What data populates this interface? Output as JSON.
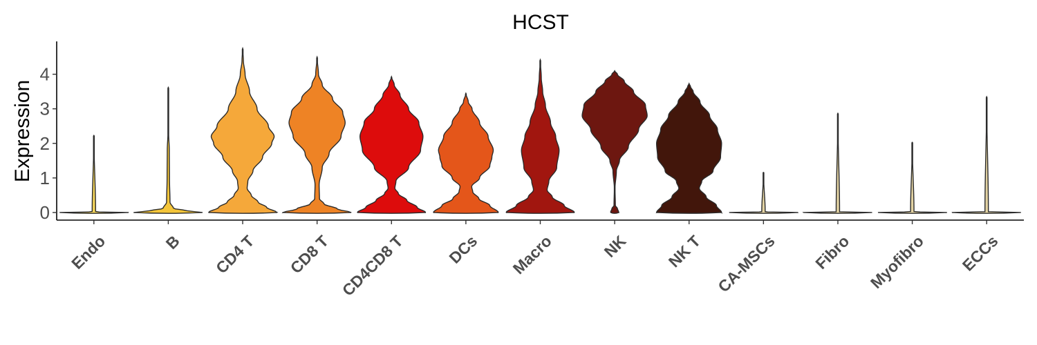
{
  "chart_data": {
    "type": "violin",
    "title": "HCST",
    "xlabel": "",
    "ylabel": "Expression",
    "ylim": [
      -0.22,
      4.95
    ],
    "yticks": [
      0,
      1,
      2,
      3,
      4
    ],
    "grid": false,
    "legend": "none",
    "categories": [
      "Endo",
      "B",
      "CD4 T",
      "CD8 T",
      "CD4CD8 T",
      "DCs",
      "Macro",
      "NK",
      "NK T",
      "CA-MSCs",
      "Fibro",
      "Myofibro",
      "ECCs"
    ],
    "colors": [
      "#f2d35a",
      "#f4c53a",
      "#f5a83a",
      "#ee8325",
      "#dd0c0c",
      "#e4561a",
      "#a1160f",
      "#6d1710",
      "#42160b",
      "#e3d3a3",
      "#e3d3a3",
      "#e3d3a3",
      "#e3d3a3"
    ],
    "series": [
      {
        "name": "Endo",
        "max": 2.23,
        "profile": [
          [
            0,
            1.0
          ],
          [
            0.02,
            0.05
          ],
          [
            2.23,
            0
          ]
        ]
      },
      {
        "name": "B",
        "max": 3.62,
        "profile": [
          [
            0,
            1.0
          ],
          [
            0.05,
            0.55
          ],
          [
            0.12,
            0.15
          ],
          [
            0.3,
            0.05
          ],
          [
            1.0,
            0.035
          ],
          [
            1.8,
            0.03
          ],
          [
            2.3,
            0.01
          ],
          [
            3.62,
            0
          ]
        ]
      },
      {
        "name": "CD4 T",
        "max": 4.75,
        "profile": [
          [
            0,
            1.0
          ],
          [
            0.15,
            0.7
          ],
          [
            0.3,
            0.45
          ],
          [
            0.5,
            0.25
          ],
          [
            0.7,
            0.13
          ],
          [
            0.9,
            0.15
          ],
          [
            1.2,
            0.3
          ],
          [
            1.6,
            0.58
          ],
          [
            2.0,
            0.85
          ],
          [
            2.2,
            0.92
          ],
          [
            2.5,
            0.75
          ],
          [
            3.0,
            0.42
          ],
          [
            3.5,
            0.2
          ],
          [
            4.0,
            0.07
          ],
          [
            4.4,
            0.02
          ],
          [
            4.75,
            0
          ]
        ]
      },
      {
        "name": "CD8 T",
        "max": 4.5,
        "profile": [
          [
            0,
            1.0
          ],
          [
            0.1,
            0.6
          ],
          [
            0.25,
            0.2
          ],
          [
            0.4,
            0.07
          ],
          [
            0.8,
            0.06
          ],
          [
            1.3,
            0.15
          ],
          [
            1.7,
            0.35
          ],
          [
            2.2,
            0.7
          ],
          [
            2.6,
            0.82
          ],
          [
            2.9,
            0.75
          ],
          [
            3.3,
            0.45
          ],
          [
            3.7,
            0.15
          ],
          [
            4.0,
            0.04
          ],
          [
            4.5,
            0
          ]
        ]
      },
      {
        "name": "CD4CD8 T",
        "max": 3.93,
        "profile": [
          [
            0,
            1.0
          ],
          [
            0.15,
            0.75
          ],
          [
            0.35,
            0.45
          ],
          [
            0.55,
            0.2
          ],
          [
            0.7,
            0.1
          ],
          [
            0.9,
            0.13
          ],
          [
            1.3,
            0.5
          ],
          [
            1.8,
            0.85
          ],
          [
            2.2,
            0.92
          ],
          [
            2.6,
            0.8
          ],
          [
            3.0,
            0.5
          ],
          [
            3.4,
            0.25
          ],
          [
            3.7,
            0.08
          ],
          [
            3.93,
            0
          ]
        ]
      },
      {
        "name": "DCs",
        "max": 3.45,
        "profile": [
          [
            0,
            0.95
          ],
          [
            0.2,
            0.7
          ],
          [
            0.4,
            0.38
          ],
          [
            0.6,
            0.2
          ],
          [
            0.75,
            0.17
          ],
          [
            1.0,
            0.4
          ],
          [
            1.35,
            0.7
          ],
          [
            1.6,
            0.76
          ],
          [
            1.8,
            0.8
          ],
          [
            2.2,
            0.65
          ],
          [
            2.6,
            0.4
          ],
          [
            3.0,
            0.18
          ],
          [
            3.2,
            0.07
          ],
          [
            3.45,
            0
          ]
        ]
      },
      {
        "name": "Macro",
        "max": 4.42,
        "profile": [
          [
            0,
            1.0
          ],
          [
            0.2,
            0.7
          ],
          [
            0.45,
            0.35
          ],
          [
            0.65,
            0.2
          ],
          [
            0.9,
            0.25
          ],
          [
            1.3,
            0.48
          ],
          [
            1.8,
            0.55
          ],
          [
            2.2,
            0.45
          ],
          [
            2.6,
            0.3
          ],
          [
            3.1,
            0.15
          ],
          [
            3.5,
            0.07
          ],
          [
            3.9,
            0.03
          ],
          [
            4.42,
            0
          ]
        ]
      },
      {
        "name": "NK",
        "max": 4.1,
        "profile": [
          [
            0,
            0.12
          ],
          [
            0.12,
            0.08
          ],
          [
            0.2,
            0.02
          ],
          [
            0.7,
            0.01
          ],
          [
            1.2,
            0.05
          ],
          [
            1.5,
            0.14
          ],
          [
            1.9,
            0.4
          ],
          [
            2.4,
            0.7
          ],
          [
            2.8,
            0.95
          ],
          [
            3.1,
            0.9
          ],
          [
            3.5,
            0.55
          ],
          [
            3.8,
            0.28
          ],
          [
            4.0,
            0.08
          ],
          [
            4.1,
            0
          ]
        ]
      },
      {
        "name": "NK T",
        "max": 3.73,
        "profile": [
          [
            0,
            0.95
          ],
          [
            0.2,
            0.8
          ],
          [
            0.45,
            0.5
          ],
          [
            0.7,
            0.3
          ],
          [
            0.9,
            0.37
          ],
          [
            1.2,
            0.7
          ],
          [
            1.6,
            0.92
          ],
          [
            2.0,
            0.95
          ],
          [
            2.4,
            0.83
          ],
          [
            2.8,
            0.6
          ],
          [
            3.2,
            0.32
          ],
          [
            3.5,
            0.12
          ],
          [
            3.65,
            0.04
          ],
          [
            3.73,
            0
          ]
        ]
      },
      {
        "name": "CA-MSCs",
        "max": 1.16,
        "profile": [
          [
            0,
            1.0
          ],
          [
            0.02,
            0.05
          ],
          [
            1.16,
            0
          ]
        ]
      },
      {
        "name": "Fibro",
        "max": 2.87,
        "profile": [
          [
            0,
            1.0
          ],
          [
            0.02,
            0.05
          ],
          [
            2.87,
            0
          ]
        ]
      },
      {
        "name": "Myofibro",
        "max": 2.03,
        "profile": [
          [
            0,
            1.0
          ],
          [
            0.02,
            0.05
          ],
          [
            2.03,
            0
          ]
        ]
      },
      {
        "name": "ECCs",
        "max": 3.35,
        "profile": [
          [
            0,
            1.0
          ],
          [
            0.02,
            0.05
          ],
          [
            3.35,
            0
          ]
        ]
      }
    ]
  }
}
